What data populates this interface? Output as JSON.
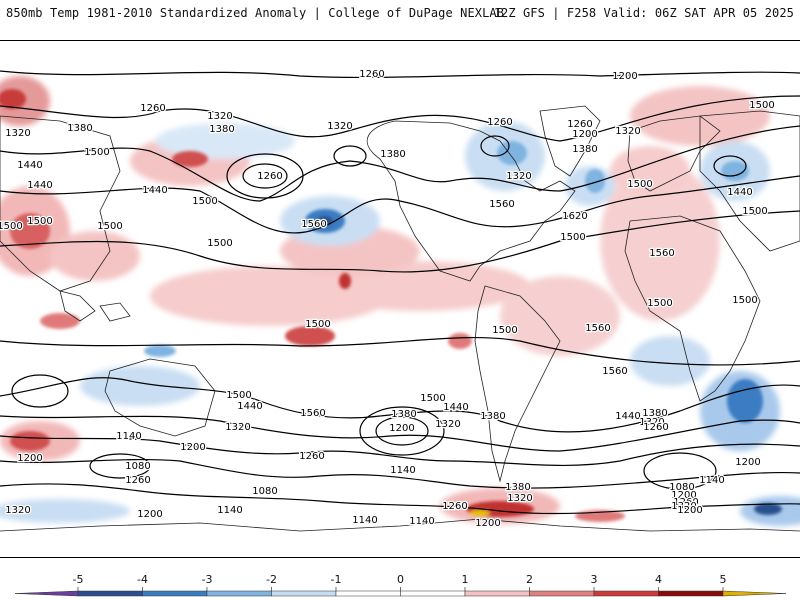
{
  "header": {
    "left_title": "850mb Temp 1981-2010 Standardized Anomaly | College of DuPage NEXLAB",
    "right_title": "12Z GFS | F258 Valid: 06Z SAT APR 05 2025"
  },
  "colorbar": {
    "ticks": [
      "-5",
      "-4",
      "-3",
      "-2",
      "-1",
      "0",
      "1",
      "2",
      "3",
      "4",
      "5"
    ],
    "colors": [
      "#6b3fa0",
      "#2b4f8e",
      "#3a7cc2",
      "#7fb3e0",
      "#c6dcf2",
      "#ffffff",
      "#ffffff",
      "#f4c2c2",
      "#e08080",
      "#cc3a3a",
      "#8b0a0a",
      "#e0b000"
    ]
  },
  "map": {
    "contour_labels": [
      {
        "text": "1260"
      },
      {
        "text": "1200"
      },
      {
        "text": "1500"
      },
      {
        "text": "1260"
      },
      {
        "text": "1320"
      },
      {
        "text": "1380"
      },
      {
        "text": "1320"
      },
      {
        "text": "1380"
      },
      {
        "text": "1320"
      },
      {
        "text": "1260"
      },
      {
        "text": "1260"
      },
      {
        "text": "1200"
      },
      {
        "text": "1320"
      },
      {
        "text": "1380"
      },
      {
        "text": "1320"
      },
      {
        "text": "1380"
      },
      {
        "text": "1440"
      },
      {
        "text": "1500"
      },
      {
        "text": "1260"
      },
      {
        "text": "1440"
      },
      {
        "text": "1500"
      },
      {
        "text": "1440"
      },
      {
        "text": "1500"
      },
      {
        "text": "1560"
      },
      {
        "text": "1500"
      },
      {
        "text": "1560"
      },
      {
        "text": "1620"
      },
      {
        "text": "1500"
      },
      {
        "text": "1440"
      },
      {
        "text": "1500"
      },
      {
        "text": "1500"
      },
      {
        "text": "1560"
      },
      {
        "text": "1500"
      },
      {
        "text": "1500"
      },
      {
        "text": "1500"
      },
      {
        "text": "1500"
      },
      {
        "text": "1500"
      },
      {
        "text": "1500"
      },
      {
        "text": "1560"
      },
      {
        "text": "1560"
      },
      {
        "text": "1500"
      },
      {
        "text": "1440"
      },
      {
        "text": "1500"
      },
      {
        "text": "1440"
      },
      {
        "text": "1560"
      },
      {
        "text": "1380"
      },
      {
        "text": "1320"
      },
      {
        "text": "1380"
      },
      {
        "text": "1200"
      },
      {
        "text": "1320"
      },
      {
        "text": "1440"
      },
      {
        "text": "1320"
      },
      {
        "text": "1380"
      },
      {
        "text": "1260"
      },
      {
        "text": "1140"
      },
      {
        "text": "1140"
      },
      {
        "text": "1080"
      },
      {
        "text": "1200"
      },
      {
        "text": "1260"
      },
      {
        "text": "1200"
      },
      {
        "text": "1260"
      },
      {
        "text": "1080"
      },
      {
        "text": "1320"
      },
      {
        "text": "1200"
      },
      {
        "text": "1140"
      },
      {
        "text": "1140"
      },
      {
        "text": "1140"
      },
      {
        "text": "1260"
      },
      {
        "text": "1380"
      },
      {
        "text": "1320"
      },
      {
        "text": "1200"
      },
      {
        "text": "1080"
      },
      {
        "text": "1200"
      },
      {
        "text": "1140"
      },
      {
        "text": "1260"
      },
      {
        "text": "1320"
      },
      {
        "text": "1200"
      },
      {
        "text": "1200"
      }
    ]
  }
}
